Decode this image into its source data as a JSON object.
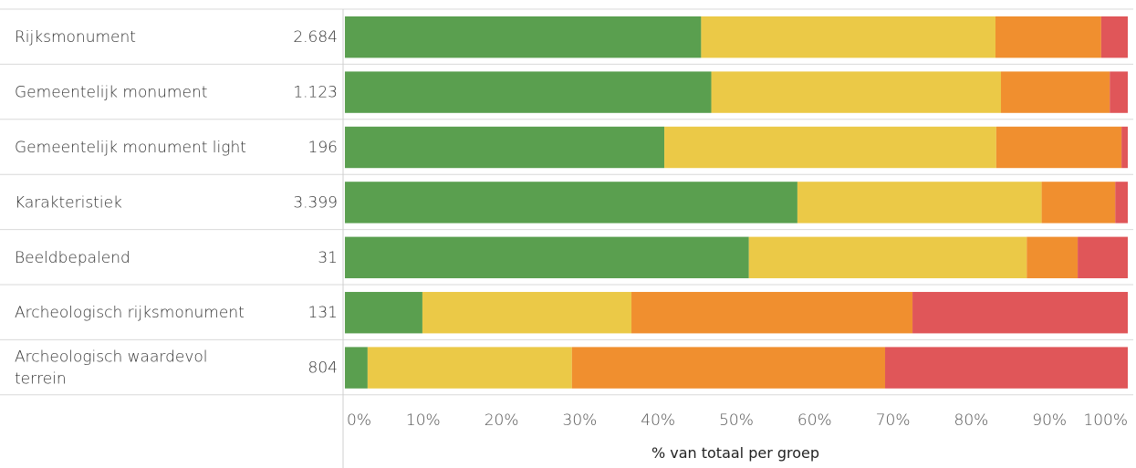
{
  "chart_data": {
    "type": "bar",
    "orientation": "horizontal",
    "stacked": true,
    "normalized": true,
    "categories": [
      "Rijksmonument",
      "Gemeentelijk monument",
      "Gemeentelijk monument light",
      "Karakteristiek",
      "Beeldbepalend",
      "Archeologisch rijksmonument",
      "Archeologisch waardevol terrein"
    ],
    "counts": [
      "2.684",
      "1.123",
      "196",
      "3.399",
      "31",
      "131",
      "804"
    ],
    "series": [
      {
        "color": "#5a9f4f",
        "values": [
          45.5,
          46.8,
          40.8,
          57.8,
          51.6,
          9.9,
          2.9
        ]
      },
      {
        "color": "#ebc947",
        "values": [
          37.6,
          37.0,
          42.4,
          31.2,
          35.5,
          26.7,
          26.1
        ]
      },
      {
        "color": "#f08f2f",
        "values": [
          13.5,
          13.9,
          16.0,
          9.4,
          6.5,
          35.9,
          40.0
        ]
      },
      {
        "color": "#e05659",
        "values": [
          3.4,
          2.3,
          0.8,
          1.6,
          6.4,
          27.5,
          31.0
        ]
      }
    ],
    "xlabel": "% van totaal per groep",
    "xlim": [
      0,
      100
    ],
    "xticks": [
      "0%",
      "10%",
      "20%",
      "30%",
      "40%",
      "50%",
      "60%",
      "70%",
      "80%",
      "90%",
      "100%"
    ],
    "grid": false
  }
}
